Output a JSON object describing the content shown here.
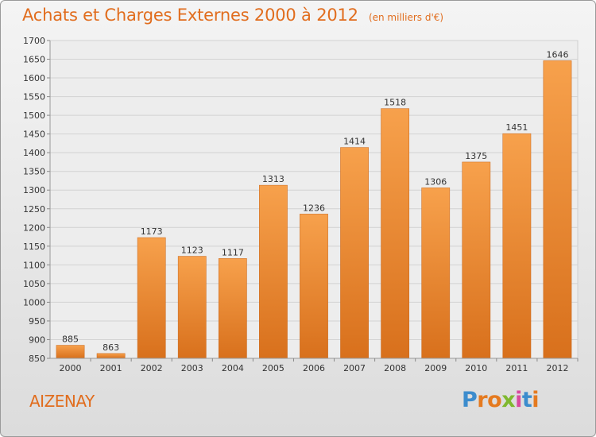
{
  "title": "Achats et Charges Externes 2000 à 2012",
  "unit": "(en milliers d'€)",
  "place": "AIZENAY",
  "logo": {
    "letters": [
      "P",
      "r",
      "o",
      "x",
      "i",
      "t",
      "i"
    ],
    "colors": [
      "#3c8ccd",
      "#e57a1f",
      "#e57a1f",
      "#7fb82f",
      "#d94a9e",
      "#3c8ccd",
      "#e57a1f"
    ]
  },
  "chart_data": {
    "type": "bar",
    "title": "Achats et Charges Externes 2000 à 2012",
    "subtitle": "(en milliers d'€)",
    "xlabel": "",
    "ylabel": "",
    "categories": [
      "2000",
      "2001",
      "2002",
      "2003",
      "2004",
      "2005",
      "2006",
      "2007",
      "2008",
      "2009",
      "2010",
      "2011",
      "2012"
    ],
    "values": [
      885,
      863,
      1173,
      1123,
      1117,
      1313,
      1236,
      1414,
      1518,
      1306,
      1375,
      1451,
      1646
    ],
    "ylim": [
      850,
      1700
    ],
    "yticks": [
      850,
      900,
      950,
      1000,
      1050,
      1100,
      1150,
      1200,
      1250,
      1300,
      1350,
      1400,
      1450,
      1500,
      1550,
      1600,
      1650,
      1700
    ],
    "grid": true,
    "legend": "none",
    "colors": {
      "bar_top": "#f7a14c",
      "bar_bottom": "#d8701c",
      "title": "#e16d1e"
    }
  }
}
